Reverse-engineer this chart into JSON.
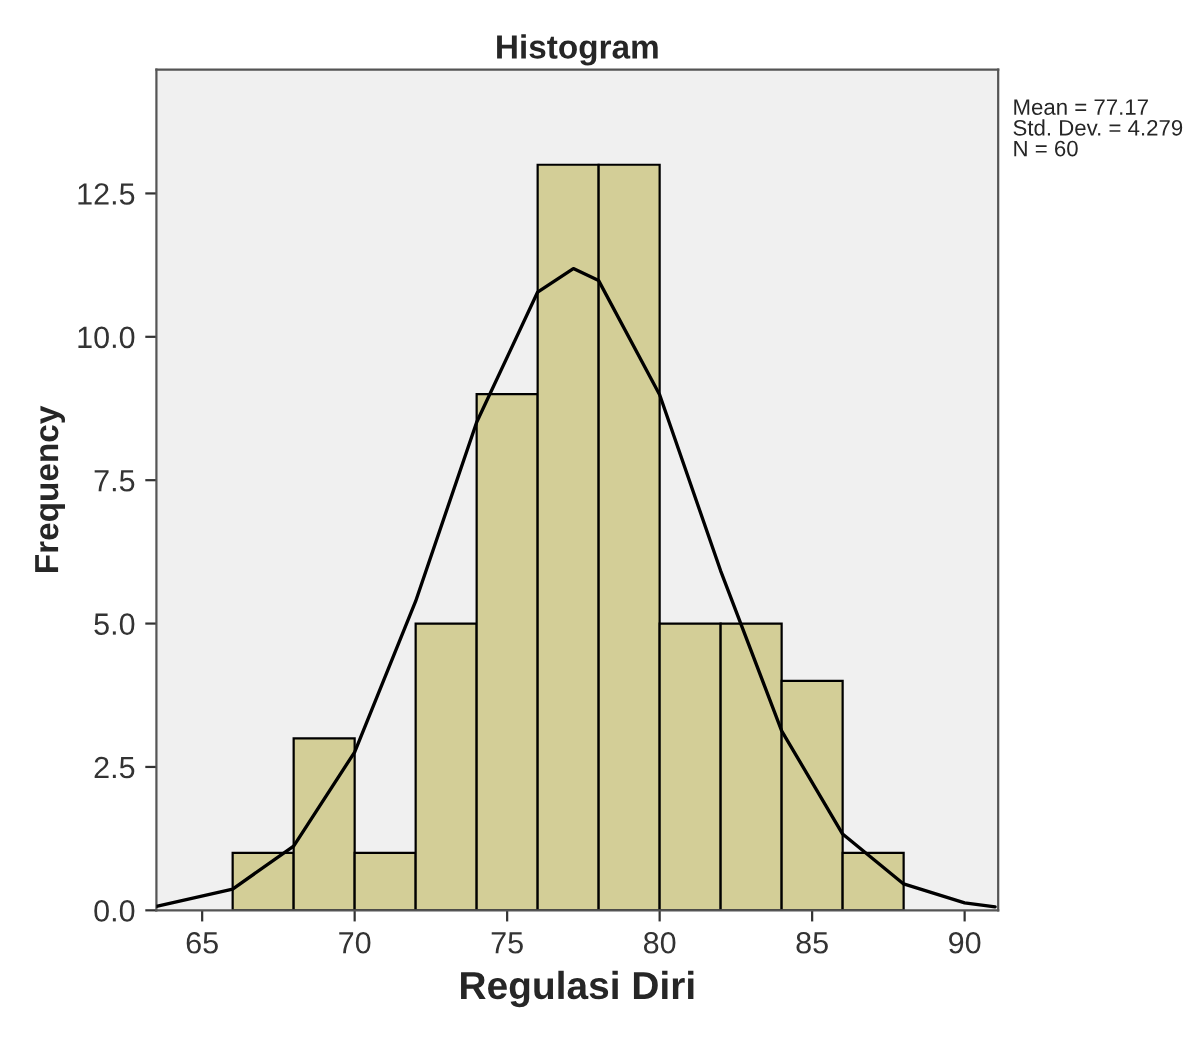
{
  "chart_data": {
    "type": "histogram",
    "title": "Histogram",
    "xlabel": "Regulasi Diri",
    "ylabel": "Frequency",
    "bins": [
      66,
      68,
      70,
      72,
      74,
      76,
      78,
      80,
      82,
      84,
      86,
      88
    ],
    "values": [
      1,
      3,
      1,
      5,
      9,
      13,
      13,
      5,
      5,
      4,
      1
    ],
    "color": "#d3ce97",
    "series": [
      {
        "type": "line",
        "color": "#000000",
        "x": [
          63.5,
          66,
          68,
          70,
          72,
          74,
          76,
          77.17,
          78,
          80,
          82,
          84,
          86,
          88,
          90,
          91
        ],
        "values": [
          0.07,
          0.37,
          1.12,
          2.76,
          5.39,
          8.51,
          10.78,
          11.19,
          10.98,
          8.99,
          5.92,
          3.13,
          1.33,
          0.46,
          0.13,
          0.06
        ]
      }
    ],
    "xlim": [
      63.5,
      91.1
    ],
    "ylim": [
      0,
      14.66
    ],
    "xticks": [
      65,
      70,
      75,
      80,
      85,
      90
    ],
    "yticks": [
      {
        "value": 0,
        "label": "0.0"
      },
      {
        "value": 2.5,
        "label": "2.5"
      },
      {
        "value": 5,
        "label": "5.0"
      },
      {
        "value": 7.5,
        "label": "7.5"
      },
      {
        "value": 10,
        "label": "10.0"
      },
      {
        "value": 12.5,
        "label": "12.5"
      }
    ],
    "annotations": [
      "Mean = 77.17",
      "Std. Dev. = 4.279",
      "N = 60"
    ],
    "grid": false,
    "legend": false
  }
}
